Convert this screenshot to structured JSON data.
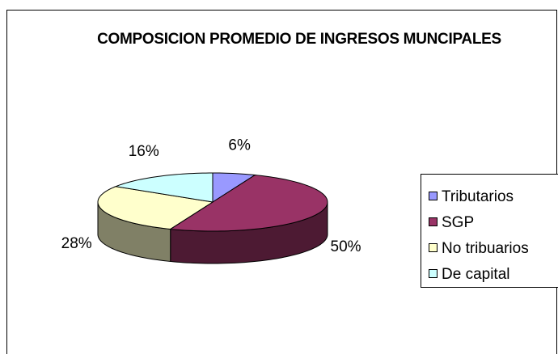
{
  "chart_data": {
    "type": "pie3d",
    "title": "COMPOSICION PROMEDIO DE INGRESOS MUNCIPALES",
    "categories": [
      "Tributarios",
      "SGP",
      "No tribuarios",
      "De capital"
    ],
    "values": [
      6,
      50,
      28,
      16
    ],
    "value_labels": [
      "6%",
      "50%",
      "28%",
      "16%"
    ],
    "colors": [
      "#9999ff",
      "#993366",
      "#ffffcc",
      "#ccffff"
    ],
    "legend": "right"
  }
}
